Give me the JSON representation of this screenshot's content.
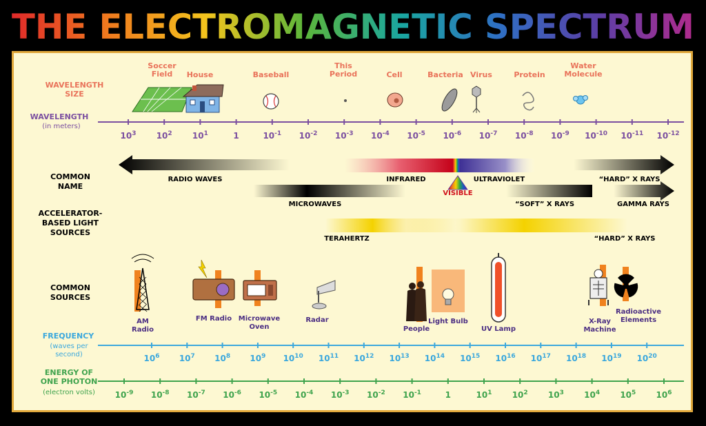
{
  "title": "THE ELECTROMAGNETIC SPECTRUM",
  "colors": {
    "background": "#000000",
    "panel": "#fdf8d2",
    "panel_border": "#e0a83c",
    "wavelength_axis": "#7b4fa0",
    "frequency_axis": "#3aa7dd",
    "energy_axis": "#3fa34d",
    "wavelength_size_label": "#e9735a",
    "title_gradient": [
      "#e02a2a",
      "#f07b1e",
      "#f4c51d",
      "#5cb63b",
      "#1aa6a0",
      "#2f6fc4",
      "#5b3fa6",
      "#b02b8d"
    ]
  },
  "rows": {
    "wavelength_size": "WAVELENGTH\nSIZE",
    "wavelength": "WAVELENGTH",
    "wavelength_unit": "(in meters)",
    "common_name": "COMMON\nNAME",
    "accelerator": "ACCELERATOR-\nBASED LIGHT\nSOURCES",
    "common_sources": "COMMON\nSOURCES",
    "frequency": "FREQUENCY",
    "frequency_unit": "(waves per\nsecond)",
    "energy": "ENERGY OF\nONE PHOTON",
    "energy_unit": "(electron volts)"
  },
  "size_objects": [
    {
      "label": "Soccer\nField",
      "icon": "soccer-field-icon"
    },
    {
      "label": "House",
      "icon": "house-icon"
    },
    {
      "label": "Baseball",
      "icon": "baseball-icon"
    },
    {
      "label": "This\nPeriod",
      "icon": "period-dot-icon"
    },
    {
      "label": "Cell",
      "icon": "cell-icon"
    },
    {
      "label": "Bacteria",
      "icon": "bacteria-icon"
    },
    {
      "label": "Virus",
      "icon": "virus-icon"
    },
    {
      "label": "Protein",
      "icon": "protein-icon"
    },
    {
      "label": "Water\nMolecule",
      "icon": "water-molecule-icon"
    }
  ],
  "wavelength_ticks": [
    {
      "base": "10",
      "exp": "3"
    },
    {
      "base": "10",
      "exp": "2"
    },
    {
      "base": "10",
      "exp": "1"
    },
    {
      "base": "1",
      "exp": ""
    },
    {
      "base": "10",
      "exp": "-1"
    },
    {
      "base": "10",
      "exp": "-2"
    },
    {
      "base": "10",
      "exp": "-3"
    },
    {
      "base": "10",
      "exp": "-4"
    },
    {
      "base": "10",
      "exp": "-5"
    },
    {
      "base": "10",
      "exp": "-6"
    },
    {
      "base": "10",
      "exp": "-7"
    },
    {
      "base": "10",
      "exp": "-8"
    },
    {
      "base": "10",
      "exp": "-9"
    },
    {
      "base": "10",
      "exp": "-10"
    },
    {
      "base": "10",
      "exp": "-11"
    },
    {
      "base": "10",
      "exp": "-12"
    }
  ],
  "bands": {
    "radio_waves": "RADIO WAVES",
    "infrared": "INFRARED",
    "ultraviolet": "ULTRAVIOLET",
    "hard_xrays": "“HARD” X RAYS",
    "visible": "VISIBLE",
    "microwaves": "MICROWAVES",
    "soft_xrays": "“SOFT” X RAYS",
    "gamma_rays": "GAMMA RAYS",
    "terahertz": "TERAHERTZ",
    "accel_hard_xrays": "“HARD” X RAYS"
  },
  "sources": [
    {
      "label": "AM\nRadio",
      "icon": "radio-tower-icon"
    },
    {
      "label": "FM Radio",
      "icon": "fm-radio-icon"
    },
    {
      "label": "Microwave\nOven",
      "icon": "microwave-oven-icon"
    },
    {
      "label": "Radar",
      "icon": "radar-dish-icon"
    },
    {
      "label": "People",
      "icon": "people-icon"
    },
    {
      "label": "Light Bulb",
      "icon": "light-bulb-icon"
    },
    {
      "label": "UV Lamp",
      "icon": "uv-lamp-icon"
    },
    {
      "label": "X-Ray\nMachine",
      "icon": "x-ray-machine-icon"
    },
    {
      "label": "Radioactive\nElements",
      "icon": "radioactive-icon"
    }
  ],
  "frequency_ticks": [
    {
      "base": "10",
      "exp": "6"
    },
    {
      "base": "10",
      "exp": "7"
    },
    {
      "base": "10",
      "exp": "8"
    },
    {
      "base": "10",
      "exp": "9"
    },
    {
      "base": "10",
      "exp": "10"
    },
    {
      "base": "10",
      "exp": "11"
    },
    {
      "base": "10",
      "exp": "12"
    },
    {
      "base": "10",
      "exp": "13"
    },
    {
      "base": "10",
      "exp": "14"
    },
    {
      "base": "10",
      "exp": "15"
    },
    {
      "base": "10",
      "exp": "16"
    },
    {
      "base": "10",
      "exp": "17"
    },
    {
      "base": "10",
      "exp": "18"
    },
    {
      "base": "10",
      "exp": "19"
    },
    {
      "base": "10",
      "exp": "20"
    }
  ],
  "energy_ticks": [
    {
      "base": "10",
      "exp": "-9"
    },
    {
      "base": "10",
      "exp": "-8"
    },
    {
      "base": "10",
      "exp": "-7"
    },
    {
      "base": "10",
      "exp": "-6"
    },
    {
      "base": "10",
      "exp": "-5"
    },
    {
      "base": "10",
      "exp": "-4"
    },
    {
      "base": "10",
      "exp": "-3"
    },
    {
      "base": "10",
      "exp": "-2"
    },
    {
      "base": "10",
      "exp": "-1"
    },
    {
      "base": "1",
      "exp": ""
    },
    {
      "base": "10",
      "exp": "1"
    },
    {
      "base": "10",
      "exp": "2"
    },
    {
      "base": "10",
      "exp": "3"
    },
    {
      "base": "10",
      "exp": "4"
    },
    {
      "base": "10",
      "exp": "5"
    },
    {
      "base": "10",
      "exp": "6"
    }
  ]
}
